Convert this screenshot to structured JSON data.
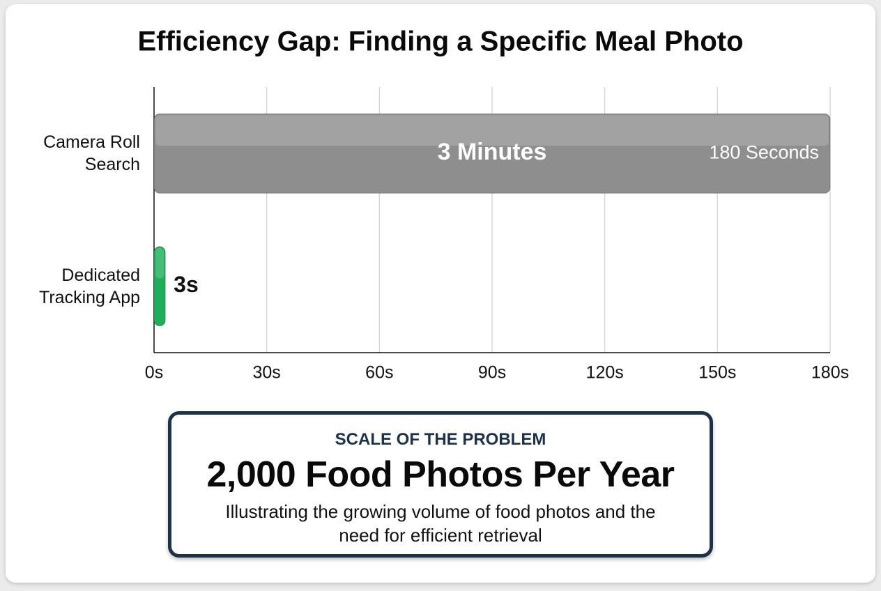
{
  "chart_data": {
    "type": "hbar",
    "title": "Efficiency Gap: Finding a Specific Meal Photo",
    "categories": [
      "Camera Roll Search",
      "Dedicated Tracking App"
    ],
    "values": [
      180,
      3
    ],
    "value_labels": [
      "180 Seconds",
      "3s"
    ],
    "bar_annotation": "3 Minutes",
    "colors": [
      "#8e8e8e",
      "#1fae5b"
    ],
    "xlim": [
      0,
      180
    ],
    "xticks": [
      {
        "value": 0,
        "label": "0s"
      },
      {
        "value": 30,
        "label": "30s"
      },
      {
        "value": 60,
        "label": "60s"
      },
      {
        "value": 90,
        "label": "90s"
      },
      {
        "value": 120,
        "label": "120s"
      },
      {
        "value": 150,
        "label": "150s"
      },
      {
        "value": 180,
        "label": "180s"
      }
    ],
    "grid": true
  },
  "callout": {
    "kicker": "SCALE OF THE PROBLEM",
    "headline": "2,000 Food Photos Per Year",
    "body": "Illustrating the growing volume of food photos and the need for efficient retrieval"
  }
}
